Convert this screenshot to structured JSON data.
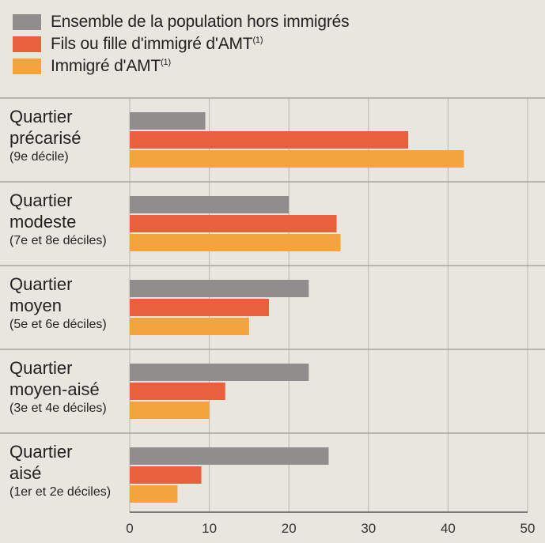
{
  "chart_data": {
    "type": "bar",
    "orientation": "horizontal",
    "series": [
      {
        "name": "Ensemble de la population hors immigrés",
        "color": "#8f8e8c",
        "values": [
          9.5,
          20,
          22.5,
          22.5,
          25
        ]
      },
      {
        "name": "Fils ou fille d'immigré d'AMT",
        "name_sup": "(1)",
        "color": "#e9603f",
        "values": [
          35,
          26,
          17.5,
          12,
          9
        ]
      },
      {
        "name": "Immigré d'AMT",
        "name_sup": "(1)",
        "color": "#f3a43e",
        "values": [
          42,
          26.5,
          15,
          10,
          6
        ]
      }
    ],
    "categories": [
      {
        "title_lines": [
          "Quartier",
          "précarisé"
        ],
        "sub": "(9e décile)"
      },
      {
        "title_lines": [
          "Quartier",
          "modeste"
        ],
        "sub": "(7e et 8e déciles)"
      },
      {
        "title_lines": [
          "Quartier",
          "moyen"
        ],
        "sub": "(5e et 6e déciles)"
      },
      {
        "title_lines": [
          "Quartier",
          "moyen-aisé"
        ],
        "sub": "(3e et 4e déciles)"
      },
      {
        "title_lines": [
          "Quartier",
          "aisé"
        ],
        "sub": "(1er et 2e déciles)"
      }
    ],
    "xlim": [
      0,
      50
    ],
    "xticks": [
      "0",
      "10",
      "20",
      "30",
      "40",
      "50"
    ],
    "grid": true
  }
}
